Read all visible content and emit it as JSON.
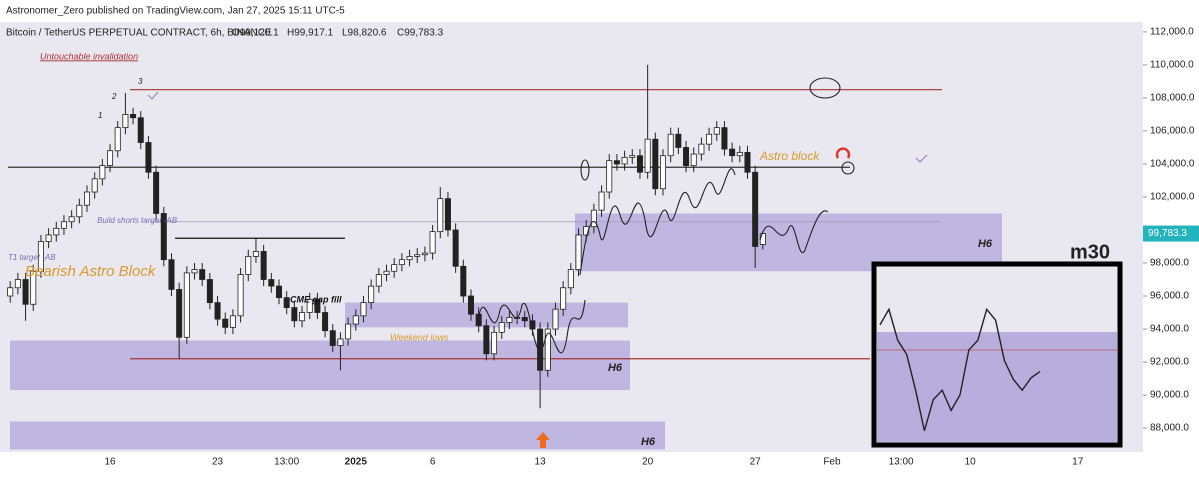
{
  "header": "Astronomer_Zero published on TradingView.com, Jan 27, 2025 15:11 UTC-5",
  "chart_data": [
    {
      "type": "candlestick",
      "title": "Bitcoin / TetherUS PERPETUAL CONTRACT, 6h, BINANCE",
      "ohlc_labels": [
        "O99,120.1",
        "H99,917.1",
        "L98,820.6",
        "C99,783.3"
      ],
      "last_price_label": "99,783.3",
      "up_color": "#ffffff",
      "down_color": "#222222",
      "categories": [
        null,
        null,
        null,
        null,
        null,
        null,
        null,
        null,
        null,
        null,
        null,
        null,
        null,
        "16",
        null,
        null,
        null,
        null,
        null,
        null,
        null,
        null,
        null,
        null,
        null,
        null,
        null,
        "23",
        null,
        null,
        null,
        null,
        null,
        null,
        null,
        null,
        "13:00",
        null,
        null,
        null,
        null,
        null,
        null,
        null,
        null,
        "2025",
        null,
        null,
        null,
        null,
        null,
        null,
        null,
        null,
        null,
        "6",
        null,
        null,
        null,
        null,
        null,
        null,
        null,
        null,
        null,
        null,
        null,
        null,
        null,
        "13",
        null,
        null,
        null,
        null,
        null,
        null,
        null,
        null,
        null,
        null,
        null,
        null,
        null,
        "20",
        null,
        null,
        null,
        null,
        null,
        null,
        null,
        null,
        null,
        null,
        null,
        null,
        null,
        "27",
        null,
        null,
        null,
        null,
        null,
        null,
        null,
        null,
        null,
        "Feb",
        null,
        null,
        null,
        null,
        null,
        null,
        null,
        null,
        "13:00",
        null,
        null,
        null,
        null,
        null,
        null,
        null,
        null,
        "10",
        null,
        null,
        null,
        null,
        null,
        null,
        null,
        null,
        null,
        null,
        null,
        null,
        null,
        "17",
        null
      ],
      "open": [
        96000,
        96500,
        97000,
        95500,
        97500,
        99300,
        99700,
        100100,
        100500,
        100800,
        101500,
        102300,
        103100,
        103900,
        104800,
        106200,
        107000,
        106800,
        105300,
        103500,
        101000,
        98200,
        96400,
        93500,
        97400,
        97600,
        97000,
        95600,
        94600,
        94100,
        94800,
        97300,
        98400,
        98700,
        97000,
        96600,
        95900,
        95300,
        94500,
        95000,
        95800,
        95000,
        93900,
        93000,
        93400,
        94300,
        94800,
        95600,
        96600,
        97300,
        97500,
        97900,
        98200,
        98400,
        98500,
        98600,
        99900,
        101900,
        100000,
        97800,
        96000,
        94900,
        94200,
        92500,
        93800,
        94400,
        94700,
        94700,
        94500,
        94000,
        91500,
        94000,
        95200,
        96500,
        97600,
        99700,
        100200,
        101200,
        102300,
        104200,
        104000,
        104400,
        104500,
        103500,
        105500,
        102500,
        104500,
        105800,
        105000,
        103900,
        104600,
        105200,
        105800,
        106200,
        104900,
        104500,
        104700,
        103500,
        99120.1,
        null,
        null,
        null,
        null,
        null,
        null,
        null,
        null,
        null,
        null,
        null,
        null,
        null,
        null,
        null,
        null,
        null,
        null,
        null,
        null,
        null,
        null,
        null,
        null,
        null,
        null,
        null,
        null,
        null,
        null,
        null,
        null,
        null,
        null,
        null,
        null,
        null,
        null,
        null,
        null,
        null,
        null
      ],
      "high": [
        96900,
        97400,
        97400,
        97900,
        99700,
        100100,
        100500,
        100900,
        101200,
        101900,
        102700,
        103500,
        104300,
        105200,
        106600,
        108300,
        107400,
        107200,
        105700,
        103900,
        101400,
        98600,
        96800,
        97800,
        98000,
        98000,
        97400,
        96000,
        95000,
        95200,
        97700,
        98800,
        99500,
        99100,
        97400,
        97000,
        96300,
        95700,
        95400,
        96200,
        96200,
        95400,
        94300,
        93800,
        94700,
        95200,
        96000,
        97000,
        97700,
        97900,
        98300,
        98600,
        98800,
        98900,
        99000,
        100300,
        102600,
        102300,
        100400,
        98200,
        96400,
        95300,
        94600,
        94200,
        94800,
        95100,
        95100,
        95100,
        94900,
        94400,
        94400,
        95600,
        96900,
        98000,
        100100,
        100600,
        101600,
        102700,
        104600,
        104600,
        104800,
        104900,
        104900,
        110000,
        105900,
        104900,
        106200,
        106200,
        105400,
        105000,
        105600,
        106200,
        106600,
        106600,
        105300,
        105100,
        105100,
        103900,
        99917.1,
        null,
        null,
        null,
        null,
        null,
        null,
        null,
        null,
        null,
        null,
        null,
        null,
        null,
        null,
        null,
        null,
        null,
        null,
        null,
        null,
        null,
        null,
        null,
        null,
        null,
        null,
        null,
        null,
        null,
        null,
        null,
        null,
        null,
        null,
        null,
        null,
        null,
        null,
        null,
        null,
        null,
        null
      ],
      "low": [
        95600,
        96100,
        94500,
        95100,
        97100,
        98900,
        99300,
        99700,
        100100,
        100400,
        101100,
        101900,
        102700,
        103500,
        104400,
        105800,
        106400,
        104900,
        103100,
        100600,
        97800,
        96000,
        92200,
        93100,
        97000,
        96600,
        95200,
        94200,
        93700,
        93700,
        94400,
        96900,
        98000,
        96600,
        96200,
        95500,
        94900,
        94100,
        94100,
        94600,
        94600,
        93500,
        92600,
        91500,
        93000,
        93900,
        94400,
        95200,
        96200,
        96900,
        97100,
        97500,
        97800,
        98000,
        98100,
        98200,
        99500,
        99600,
        97400,
        95600,
        94500,
        93800,
        92100,
        92100,
        93400,
        94000,
        94300,
        94100,
        93600,
        89200,
        91100,
        93600,
        94800,
        96100,
        97200,
        99300,
        99800,
        100800,
        101900,
        103600,
        103600,
        104000,
        103100,
        103100,
        102100,
        102100,
        104100,
        104600,
        103500,
        103500,
        104200,
        104800,
        105400,
        104500,
        104100,
        104100,
        103100,
        97700,
        98820.6,
        null,
        null,
        null,
        null,
        null,
        null,
        null,
        null,
        null,
        null,
        null,
        null,
        null,
        null,
        null,
        null,
        null,
        null,
        null,
        null,
        null,
        null,
        null,
        null,
        null,
        null,
        null,
        null,
        null,
        null,
        null,
        null,
        null,
        null,
        null,
        null,
        null,
        null,
        null,
        null,
        null,
        null
      ],
      "close": [
        96500,
        97000,
        95500,
        97500,
        99300,
        99700,
        100100,
        100500,
        100800,
        101500,
        102300,
        103100,
        103900,
        104800,
        106200,
        107000,
        106800,
        105300,
        103500,
        101000,
        98200,
        96400,
        93500,
        97400,
        97600,
        97000,
        95600,
        94600,
        94100,
        94800,
        97300,
        98400,
        98700,
        97000,
        96600,
        95900,
        95300,
        94500,
        95000,
        95800,
        95000,
        93900,
        93000,
        93400,
        94300,
        94800,
        95600,
        96600,
        97300,
        97500,
        97900,
        98200,
        98400,
        98500,
        98600,
        99900,
        101900,
        100000,
        97800,
        96000,
        94900,
        94200,
        92500,
        93800,
        94400,
        94700,
        94700,
        94500,
        94000,
        91500,
        94000,
        95200,
        96500,
        97600,
        99700,
        100200,
        101200,
        102300,
        104200,
        104000,
        104400,
        104500,
        103500,
        105500,
        102500,
        104500,
        105800,
        105000,
        103900,
        104600,
        105200,
        105800,
        106200,
        104900,
        104500,
        104700,
        103500,
        99000,
        99783.3,
        null,
        null,
        null,
        null,
        null,
        null,
        null,
        null,
        null,
        null,
        null,
        null,
        null,
        null,
        null,
        null,
        null,
        null,
        null,
        null,
        null,
        null,
        null,
        null,
        null,
        null,
        null,
        null,
        null,
        null,
        null,
        null,
        null,
        null,
        null,
        null,
        null,
        null,
        null,
        null,
        null,
        null
      ],
      "ylim": [
        86550,
        112600
      ],
      "yticks": [
        {
          "value": 88000,
          "label": "88,000.0"
        },
        {
          "value": 90000,
          "label": "90,000.0"
        },
        {
          "value": 92000,
          "label": "92,000.0"
        },
        {
          "value": 94000,
          "label": "94,000.0"
        },
        {
          "value": 96000,
          "label": "96,000.0"
        },
        {
          "value": 98000,
          "label": "98,000.0"
        },
        {
          "value": 102000,
          "label": "102,000.0"
        },
        {
          "value": 104000,
          "label": "104,000.0"
        },
        {
          "value": 106000,
          "label": "106,000.0"
        },
        {
          "value": 108000,
          "label": "108,000.0"
        },
        {
          "value": 110000,
          "label": "110,000.0"
        },
        {
          "value": 112000,
          "label": "112,000.0"
        }
      ],
      "grid": false,
      "levels": [
        {
          "value": 108500,
          "color": "#a83232"
        },
        {
          "value": 103800,
          "color": "#333333"
        },
        {
          "value": 100500,
          "color": "#9b9bb0"
        },
        {
          "value": 99500,
          "color": "#111111"
        },
        {
          "value": 92200,
          "color": "#a83232"
        }
      ],
      "zones": [
        {
          "label": "H6",
          "from": 101000,
          "to": 97500
        },
        {
          "from": 95600,
          "to": 94100
        },
        {
          "label": "H6",
          "from": 93300,
          "to": 90300
        },
        {
          "label": "H6",
          "from": 88400,
          "to": 86700
        }
      ],
      "zone_color": "#b7aede",
      "annotations": [
        "Untouchable invalidation",
        "1",
        "2",
        "3",
        "Build shorts target -AB",
        "T1 target -AB",
        "Bearish Astro Block",
        "CME gap fill",
        "Weekend lows",
        "Astro block"
      ]
    },
    {
      "type": "line",
      "title": "m30",
      "color": "#222222",
      "categories": [
        null,
        null,
        null,
        null,
        null,
        null,
        null,
        null,
        null,
        null,
        null,
        null,
        null,
        null,
        null,
        null,
        null,
        null,
        null
      ],
      "values": [
        104400,
        105400,
        103400,
        102500,
        100200,
        97600,
        99600,
        100200,
        98900,
        99900,
        102800,
        103400,
        105400,
        104700,
        102100,
        100900,
        100200,
        101000,
        101400
      ],
      "ylim": [
        97000,
        106000
      ]
    }
  ]
}
